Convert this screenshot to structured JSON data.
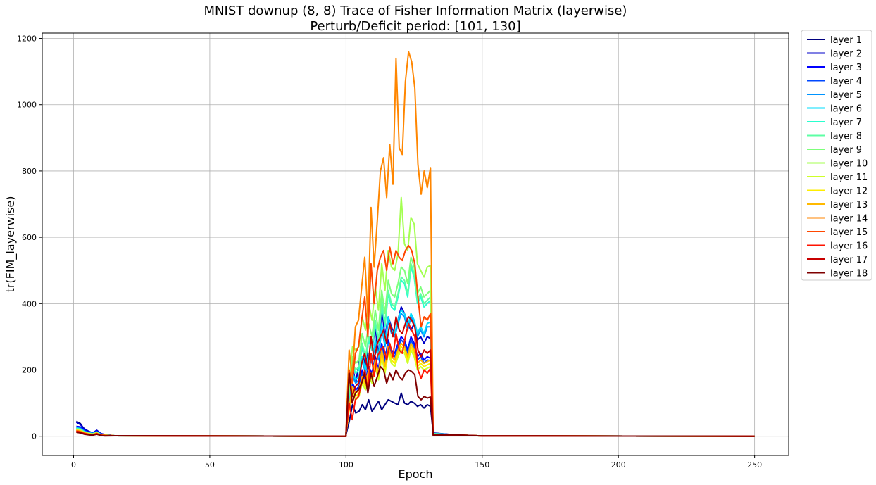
{
  "chart_data": {
    "type": "line",
    "title": "MNIST downup (8, 8) Trace of Fisher Information Matrix (layerwise)",
    "subtitle": "Perturb/Deficit period: [101, 130]",
    "xlabel": "Epoch",
    "ylabel": "tr(FIM_layerwise)",
    "xlim": [
      -11.5,
      262.5
    ],
    "ylim": [
      -58,
      1216
    ],
    "xticks": [
      0,
      50,
      100,
      150,
      200,
      250
    ],
    "yticks": [
      0,
      200,
      400,
      600,
      800,
      1000,
      1200
    ],
    "grid": true,
    "legend_position": "outside-right",
    "perturb_period": [
      101,
      130
    ],
    "x_range": [
      1,
      250
    ],
    "series": [
      {
        "name": "layer 1",
        "color": "#00007f",
        "early": [
          45,
          38,
          20,
          12,
          8,
          14,
          6,
          4
        ],
        "deficit": [
          5,
          45,
          95,
          70,
          75,
          95,
          80,
          110,
          75,
          90,
          105,
          80,
          95,
          110,
          105,
          100,
          95,
          130,
          100,
          95,
          105,
          100,
          90,
          95,
          85,
          95,
          90
        ]
      },
      {
        "name": "layer 2",
        "color": "#0000c8",
        "early": [
          42,
          35,
          22,
          15,
          10,
          18,
          8,
          5
        ],
        "deficit": [
          10,
          140,
          210,
          160,
          220,
          280,
          200,
          300,
          260,
          330,
          240,
          390,
          300,
          360,
          330,
          300,
          350,
          390,
          370,
          340,
          320,
          340,
          290,
          300,
          280,
          300,
          295
        ]
      },
      {
        "name": "layer 3",
        "color": "#0000ff",
        "early": [
          30,
          28,
          18,
          12,
          10,
          16,
          7,
          5
        ],
        "deficit": [
          8,
          100,
          160,
          140,
          150,
          200,
          170,
          210,
          190,
          240,
          200,
          280,
          230,
          290,
          260,
          250,
          280,
          300,
          290,
          260,
          300,
          280,
          240,
          250,
          230,
          240,
          235
        ]
      },
      {
        "name": "layer 4",
        "color": "#0048ff",
        "early": [
          28,
          25,
          16,
          11,
          9,
          14,
          6,
          4
        ],
        "deficit": [
          8,
          95,
          150,
          130,
          145,
          190,
          160,
          200,
          180,
          230,
          190,
          270,
          220,
          280,
          250,
          240,
          270,
          290,
          280,
          250,
          290,
          270,
          230,
          240,
          220,
          230,
          228
        ]
      },
      {
        "name": "layer 5",
        "color": "#0094ff",
        "early": [
          26,
          23,
          15,
          10,
          8,
          13,
          6,
          4
        ],
        "deficit": [
          9,
          110,
          180,
          160,
          170,
          230,
          190,
          240,
          220,
          280,
          230,
          330,
          270,
          350,
          310,
          300,
          340,
          370,
          360,
          320,
          360,
          340,
          300,
          320,
          300,
          330,
          330
        ]
      },
      {
        "name": "layer 6",
        "color": "#00dcfe",
        "early": [
          25,
          22,
          14,
          10,
          8,
          12,
          5,
          4
        ],
        "deficit": [
          9,
          120,
          190,
          170,
          180,
          240,
          200,
          250,
          230,
          290,
          240,
          340,
          280,
          360,
          320,
          310,
          350,
          380,
          370,
          330,
          370,
          350,
          310,
          330,
          310,
          340,
          345
        ]
      },
      {
        "name": "layer 7",
        "color": "#29ffce",
        "early": [
          24,
          21,
          13,
          9,
          7,
          12,
          5,
          4
        ],
        "deficit": [
          10,
          130,
          210,
          190,
          200,
          270,
          230,
          290,
          260,
          340,
          280,
          400,
          330,
          430,
          390,
          380,
          420,
          470,
          460,
          420,
          510,
          480,
          400,
          420,
          390,
          400,
          410
        ]
      },
      {
        "name": "layer 8",
        "color": "#5dffa5",
        "early": [
          23,
          20,
          13,
          9,
          7,
          11,
          5,
          3
        ],
        "deficit": [
          10,
          135,
          220,
          200,
          210,
          280,
          240,
          300,
          270,
          350,
          290,
          410,
          340,
          440,
          400,
          390,
          430,
          480,
          470,
          430,
          520,
          490,
          410,
          430,
          400,
          410,
          420
        ]
      },
      {
        "name": "layer 9",
        "color": "#7dff7a",
        "early": [
          22,
          19,
          12,
          8,
          7,
          11,
          5,
          3
        ],
        "deficit": [
          11,
          150,
          240,
          220,
          230,
          310,
          270,
          340,
          300,
          380,
          320,
          440,
          370,
          470,
          430,
          420,
          460,
          510,
          500,
          460,
          540,
          510,
          430,
          450,
          420,
          430,
          440
        ]
      },
      {
        "name": "layer 10",
        "color": "#a4ff52",
        "early": [
          21,
          18,
          12,
          8,
          6,
          10,
          4,
          3
        ],
        "deficit": [
          12,
          170,
          270,
          260,
          270,
          360,
          320,
          400,
          350,
          450,
          380,
          520,
          440,
          560,
          510,
          500,
          550,
          720,
          580,
          560,
          660,
          640,
          520,
          500,
          480,
          510,
          515
        ]
      },
      {
        "name": "layer 11",
        "color": "#ceff29",
        "early": [
          20,
          17,
          11,
          8,
          6,
          10,
          4,
          3
        ],
        "deficit": [
          9,
          80,
          130,
          110,
          120,
          160,
          140,
          180,
          160,
          210,
          170,
          240,
          190,
          250,
          220,
          210,
          240,
          260,
          250,
          220,
          260,
          240,
          200,
          210,
          200,
          205,
          210
        ]
      },
      {
        "name": "layer 12",
        "color": "#feed00",
        "early": [
          19,
          16,
          10,
          7,
          6,
          9,
          4,
          3
        ],
        "deficit": [
          9,
          85,
          140,
          120,
          130,
          170,
          150,
          190,
          170,
          220,
          180,
          250,
          200,
          260,
          230,
          220,
          250,
          270,
          260,
          230,
          270,
          250,
          210,
          220,
          210,
          215,
          220
        ]
      },
      {
        "name": "layer 13",
        "color": "#ffb900",
        "early": [
          18,
          15,
          10,
          7,
          5,
          9,
          4,
          3
        ],
        "deficit": [
          10,
          90,
          150,
          130,
          140,
          180,
          160,
          200,
          180,
          230,
          190,
          260,
          210,
          270,
          240,
          230,
          260,
          280,
          270,
          240,
          280,
          260,
          220,
          230,
          220,
          225,
          230
        ]
      },
      {
        "name": "layer 14",
        "color": "#ff8600",
        "early": [
          17,
          14,
          9,
          6,
          5,
          8,
          3,
          2
        ],
        "deficit": [
          15,
          260,
          180,
          330,
          350,
          450,
          540,
          360,
          690,
          510,
          650,
          800,
          840,
          720,
          880,
          760,
          1140,
          870,
          850,
          1070,
          1160,
          1130,
          1050,
          820,
          730,
          800,
          750,
          810
        ]
      },
      {
        "name": "layer 15",
        "color": "#ff4800",
        "early": [
          16,
          13,
          8,
          6,
          5,
          8,
          3,
          2
        ],
        "deficit": [
          12,
          200,
          160,
          250,
          270,
          350,
          420,
          300,
          520,
          400,
          500,
          540,
          560,
          500,
          570,
          520,
          560,
          540,
          530,
          560,
          575,
          560,
          520,
          420,
          330,
          360,
          350,
          370
        ]
      },
      {
        "name": "layer 16",
        "color": "#ff1300",
        "early": [
          15,
          12,
          8,
          5,
          4,
          7,
          3,
          2
        ],
        "deficit": [
          8,
          100,
          50,
          110,
          120,
          160,
          200,
          140,
          250,
          180,
          240,
          260,
          270,
          230,
          280,
          240,
          310,
          260,
          250,
          300,
          340,
          320,
          300,
          200,
          175,
          200,
          190,
          205
        ]
      },
      {
        "name": "layer 17",
        "color": "#c80000",
        "early": [
          14,
          11,
          7,
          5,
          4,
          7,
          3,
          2
        ],
        "deficit": [
          10,
          190,
          120,
          150,
          160,
          220,
          250,
          200,
          300,
          230,
          280,
          300,
          320,
          280,
          340,
          300,
          360,
          320,
          310,
          340,
          360,
          350,
          330,
          260,
          240,
          260,
          250,
          260
        ]
      },
      {
        "name": "layer 18",
        "color": "#7f0000",
        "early": [
          12,
          10,
          6,
          4,
          3,
          6,
          2,
          1
        ],
        "deficit": [
          10,
          190,
          100,
          130,
          140,
          160,
          190,
          130,
          190,
          150,
          180,
          210,
          200,
          160,
          190,
          170,
          200,
          180,
          170,
          190,
          200,
          195,
          185,
          120,
          110,
          120,
          115,
          118
        ]
      }
    ]
  }
}
